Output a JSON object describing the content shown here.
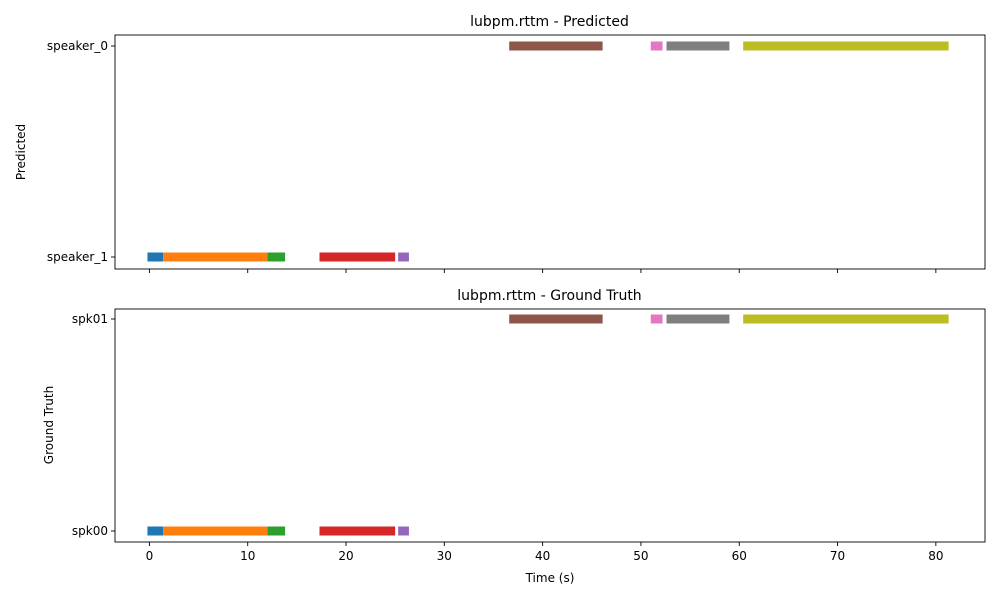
{
  "chart_data": [
    {
      "type": "timeline",
      "title": "lubpm.rttm - Predicted",
      "ylabel": "Predicted",
      "xlabel": "",
      "xlim": [
        -3.5,
        85
      ],
      "xticks": [
        0,
        10,
        20,
        30,
        40,
        50,
        60,
        70,
        80
      ],
      "show_xtick_labels": false,
      "categories": [
        "speaker_0",
        "speaker_1"
      ],
      "segments": [
        {
          "speaker": "speaker_1",
          "start": -0.2,
          "end": 1.4,
          "color": "#1f77b4"
        },
        {
          "speaker": "speaker_1",
          "start": 1.4,
          "end": 12.0,
          "color": "#ff7f0e"
        },
        {
          "speaker": "speaker_1",
          "start": 12.0,
          "end": 13.8,
          "color": "#2ca02c"
        },
        {
          "speaker": "speaker_1",
          "start": 17.3,
          "end": 25.0,
          "color": "#d62728"
        },
        {
          "speaker": "speaker_1",
          "start": 25.3,
          "end": 26.4,
          "color": "#9467bd"
        },
        {
          "speaker": "speaker_0",
          "start": 36.6,
          "end": 46.1,
          "color": "#8c564b"
        },
        {
          "speaker": "speaker_0",
          "start": 51.0,
          "end": 52.2,
          "color": "#e377c2"
        },
        {
          "speaker": "speaker_0",
          "start": 52.6,
          "end": 59.0,
          "color": "#7f7f7f"
        },
        {
          "speaker": "speaker_0",
          "start": 60.4,
          "end": 81.3,
          "color": "#bcbd22"
        }
      ]
    },
    {
      "type": "timeline",
      "title": "lubpm.rttm - Ground Truth",
      "ylabel": "Ground Truth",
      "xlabel": "Time (s)",
      "xlim": [
        -3.5,
        85
      ],
      "xticks": [
        0,
        10,
        20,
        30,
        40,
        50,
        60,
        70,
        80
      ],
      "show_xtick_labels": true,
      "categories": [
        "spk01",
        "spk00"
      ],
      "segments": [
        {
          "speaker": "spk00",
          "start": -0.2,
          "end": 1.4,
          "color": "#1f77b4"
        },
        {
          "speaker": "spk00",
          "start": 1.4,
          "end": 12.0,
          "color": "#ff7f0e"
        },
        {
          "speaker": "spk00",
          "start": 12.0,
          "end": 13.8,
          "color": "#2ca02c"
        },
        {
          "speaker": "spk00",
          "start": 17.3,
          "end": 25.0,
          "color": "#d62728"
        },
        {
          "speaker": "spk00",
          "start": 25.3,
          "end": 26.4,
          "color": "#9467bd"
        },
        {
          "speaker": "spk01",
          "start": 36.6,
          "end": 46.1,
          "color": "#8c564b"
        },
        {
          "speaker": "spk01",
          "start": 51.0,
          "end": 52.2,
          "color": "#e377c2"
        },
        {
          "speaker": "spk01",
          "start": 52.6,
          "end": 59.0,
          "color": "#7f7f7f"
        },
        {
          "speaker": "spk01",
          "start": 60.4,
          "end": 81.3,
          "color": "#bcbd22"
        }
      ]
    }
  ]
}
